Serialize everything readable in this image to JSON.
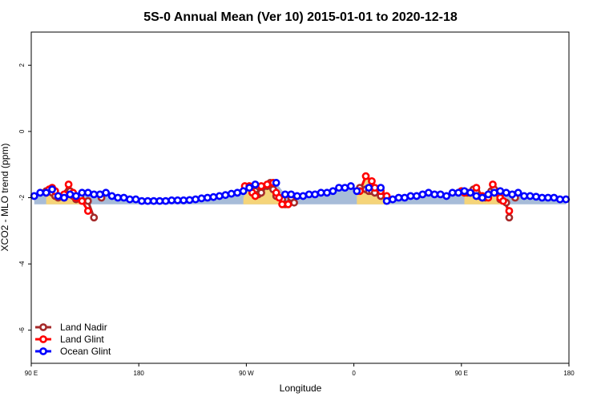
{
  "chart_data": {
    "type": "line",
    "title": "5S-0 Annual Mean (Ver 10)   2015-01-01 to 2020-12-18",
    "xlabel": "Longitude",
    "ylabel": "XCO2 - MLO trend (ppm)",
    "xlim": [
      90,
      450
    ],
    "ylim": [
      -7,
      3
    ],
    "x_ticks": [
      {
        "value": 90,
        "label": "90 E"
      },
      {
        "value": 162,
        "label": "180"
      },
      {
        "value": 234,
        "label": "90 W"
      },
      {
        "value": 306,
        "label": "0"
      },
      {
        "value": 378,
        "label": "90 E"
      },
      {
        "value": 450,
        "label": "180"
      }
    ],
    "y_ticks": [
      {
        "value": 2,
        "label": "2"
      },
      {
        "value": 0,
        "label": "0"
      },
      {
        "value": -2,
        "label": "-2"
      },
      {
        "value": -4,
        "label": "-4"
      },
      {
        "value": -6,
        "label": "-6"
      }
    ],
    "baseline": -2.2,
    "legend_position": "bottom-left",
    "ocean_fill_color": "#a7bcd8",
    "land_fill_color": "#f5d479",
    "series": [
      {
        "name": "Land Nadir",
        "color": "#a52a2a",
        "segments": [
          [
            [
              100,
              -1.8
            ],
            [
              102,
              -1.75
            ],
            [
              104,
              -1.85
            ],
            [
              106,
              -1.95
            ],
            [
              108,
              -2.0
            ],
            [
              112,
              -2.0
            ],
            [
              114,
              -1.85
            ],
            [
              116,
              -1.8
            ],
            [
              118,
              -1.95
            ],
            [
              120,
              -2.05
            ],
            [
              123,
              -2.0
            ],
            [
              128,
              -2.1
            ],
            [
              132,
              -2.6
            ]
          ],
          [
            [
              137,
              -2.0
            ]
          ],
          [
            [
              238,
              -1.85
            ],
            [
              240,
              -1.8
            ],
            [
              242,
              -1.9
            ],
            [
              244,
              -1.85
            ],
            [
              248,
              -1.65
            ],
            [
              250,
              -1.55
            ],
            [
              252,
              -1.75
            ],
            [
              254,
              -1.95
            ],
            [
              258,
              -2.05
            ],
            [
              260,
              -2.2
            ],
            [
              264,
              -2.0
            ],
            [
              266,
              -2.15
            ]
          ],
          [
            [
              310,
              -1.7
            ],
            [
              314,
              -1.75
            ],
            [
              316,
              -1.8
            ],
            [
              318,
              -1.8
            ],
            [
              320,
              -1.85
            ],
            [
              324,
              -1.95
            ]
          ],
          [
            [
              382,
              -1.85
            ],
            [
              386,
              -1.75
            ],
            [
              388,
              -1.8
            ],
            [
              390,
              -1.95
            ],
            [
              392,
              -2.0
            ],
            [
              394,
              -2.0
            ],
            [
              398,
              -1.8
            ],
            [
              400,
              -1.75
            ],
            [
              402,
              -1.85
            ],
            [
              404,
              -2.05
            ],
            [
              408,
              -2.15
            ],
            [
              410,
              -2.6
            ]
          ],
          [
            [
              414,
              -2.0
            ]
          ]
        ]
      },
      {
        "name": "Land Glint",
        "color": "#ff0000",
        "segments": [
          [
            [
              100,
              -1.85
            ],
            [
              102,
              -1.75
            ],
            [
              104,
              -1.7
            ],
            [
              106,
              -1.8
            ],
            [
              108,
              -1.95
            ],
            [
              112,
              -1.9
            ],
            [
              115,
              -1.6
            ],
            [
              118,
              -1.85
            ],
            [
              120,
              -2.0
            ],
            [
              124,
              -2.1
            ],
            [
              128,
              -2.4
            ]
          ],
          [
            [
              233,
              -1.65
            ],
            [
              236,
              -1.65
            ],
            [
              238,
              -1.85
            ],
            [
              240,
              -1.95
            ],
            [
              244,
              -1.65
            ],
            [
              248,
              -1.6
            ],
            [
              252,
              -1.55
            ],
            [
              254,
              -1.85
            ],
            [
              256,
              -2.0
            ],
            [
              258,
              -2.2
            ],
            [
              262,
              -2.2
            ]
          ],
          [
            [
              310,
              -1.8
            ],
            [
              314,
              -1.35
            ],
            [
              318,
              -1.5
            ],
            [
              320,
              -1.7
            ],
            [
              324,
              -1.8
            ],
            [
              328,
              -1.95
            ]
          ],
          [
            [
              378,
              -1.8
            ],
            [
              380,
              -1.85
            ],
            [
              384,
              -1.85
            ],
            [
              388,
              -1.7
            ],
            [
              392,
              -1.95
            ],
            [
              396,
              -2.0
            ],
            [
              399,
              -1.6
            ],
            [
              402,
              -1.85
            ],
            [
              404,
              -2.0
            ],
            [
              406,
              -2.1
            ],
            [
              410,
              -2.4
            ]
          ]
        ]
      },
      {
        "name": "Ocean Glint",
        "color": "#0000ff",
        "segments": [
          [
            [
              92,
              -1.95
            ],
            [
              96,
              -1.85
            ],
            [
              100,
              -1.85
            ],
            [
              104,
              -1.75
            ],
            [
              108,
              -1.95
            ],
            [
              112,
              -2.0
            ],
            [
              116,
              -1.9
            ],
            [
              120,
              -1.95
            ],
            [
              124,
              -1.85
            ],
            [
              128,
              -1.85
            ],
            [
              132,
              -1.9
            ],
            [
              136,
              -1.9
            ],
            [
              140,
              -1.85
            ],
            [
              144,
              -1.95
            ],
            [
              148,
              -2.0
            ],
            [
              152,
              -2.0
            ],
            [
              156,
              -2.05
            ],
            [
              160,
              -2.05
            ],
            [
              164,
              -2.1
            ],
            [
              168,
              -2.1
            ],
            [
              172,
              -2.1
            ],
            [
              176,
              -2.1
            ],
            [
              180,
              -2.1
            ],
            [
              184,
              -2.08
            ],
            [
              188,
              -2.08
            ],
            [
              192,
              -2.08
            ],
            [
              196,
              -2.07
            ],
            [
              200,
              -2.05
            ],
            [
              204,
              -2.02
            ],
            [
              208,
              -2.0
            ],
            [
              212,
              -1.98
            ],
            [
              216,
              -1.95
            ],
            [
              220,
              -1.92
            ],
            [
              224,
              -1.88
            ],
            [
              228,
              -1.85
            ],
            [
              232,
              -1.8
            ],
            [
              236,
              -1.7
            ],
            [
              240,
              -1.6
            ]
          ],
          [
            [
              254,
              -1.55
            ]
          ],
          [
            [
              260,
              -1.9
            ],
            [
              264,
              -1.9
            ],
            [
              268,
              -1.95
            ],
            [
              272,
              -1.95
            ],
            [
              276,
              -1.9
            ],
            [
              280,
              -1.9
            ],
            [
              284,
              -1.85
            ],
            [
              288,
              -1.85
            ],
            [
              292,
              -1.8
            ],
            [
              296,
              -1.7
            ],
            [
              300,
              -1.7
            ],
            [
              304,
              -1.65
            ],
            [
              308,
              -1.8
            ]
          ],
          [
            [
              316,
              -1.7
            ]
          ],
          [
            [
              324,
              -1.7
            ],
            [
              328,
              -2.1
            ],
            [
              332,
              -2.05
            ],
            [
              336,
              -2.0
            ],
            [
              340,
              -2.0
            ],
            [
              344,
              -1.95
            ],
            [
              348,
              -1.95
            ],
            [
              352,
              -1.9
            ],
            [
              356,
              -1.85
            ],
            [
              360,
              -1.9
            ],
            [
              364,
              -1.9
            ],
            [
              368,
              -1.95
            ],
            [
              372,
              -1.85
            ],
            [
              376,
              -1.85
            ],
            [
              380,
              -1.8
            ],
            [
              384,
              -1.85
            ],
            [
              388,
              -1.95
            ],
            [
              392,
              -2.0
            ],
            [
              396,
              -1.9
            ],
            [
              400,
              -1.85
            ],
            [
              404,
              -1.8
            ],
            [
              408,
              -1.85
            ],
            [
              412,
              -1.9
            ],
            [
              416,
              -1.85
            ],
            [
              420,
              -1.95
            ],
            [
              424,
              -1.95
            ],
            [
              428,
              -1.97
            ],
            [
              432,
              -2.0
            ],
            [
              436,
              -2.0
            ],
            [
              440,
              -2.0
            ],
            [
              444,
              -2.05
            ],
            [
              448,
              -2.05
            ]
          ]
        ]
      }
    ],
    "land_regions": [
      [
        [
          100,
          -1.8
        ],
        [
          104,
          -1.7
        ],
        [
          108,
          -1.95
        ],
        [
          112,
          -1.85
        ],
        [
          115,
          -1.6
        ],
        [
          118,
          -1.8
        ],
        [
          122,
          -2.0
        ],
        [
          126,
          -2.1
        ],
        [
          128,
          -2.1
        ]
      ],
      [
        [
          232,
          -2.0
        ],
        [
          236,
          -1.65
        ],
        [
          240,
          -1.8
        ],
        [
          244,
          -1.65
        ],
        [
          248,
          -1.6
        ],
        [
          252,
          -1.55
        ],
        [
          256,
          -1.9
        ],
        [
          260,
          -2.1
        ],
        [
          262,
          -2.1
        ]
      ],
      [
        [
          308,
          -1.9
        ],
        [
          312,
          -1.5
        ],
        [
          314,
          -1.4
        ],
        [
          318,
          -1.5
        ],
        [
          322,
          -1.75
        ],
        [
          326,
          -1.85
        ],
        [
          330,
          -2.0
        ]
      ],
      [
        [
          380,
          -1.9
        ],
        [
          384,
          -1.8
        ],
        [
          388,
          -1.7
        ],
        [
          392,
          -1.9
        ],
        [
          396,
          -1.95
        ],
        [
          399,
          -1.65
        ],
        [
          402,
          -1.8
        ],
        [
          406,
          -2.0
        ],
        [
          410,
          -2.1
        ]
      ]
    ]
  }
}
